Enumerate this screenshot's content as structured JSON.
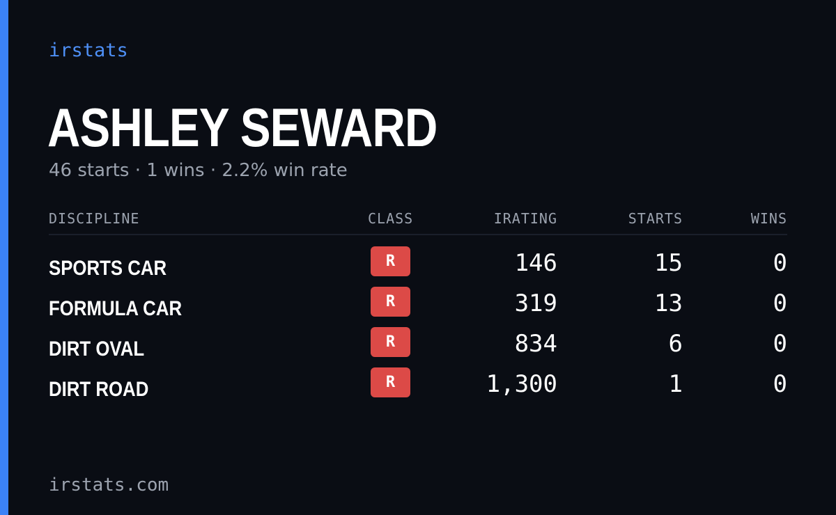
{
  "brand": {
    "name": "irstats"
  },
  "player": {
    "name": "ASHLEY SEWARD",
    "summary": "46 starts · 1 wins · 2.2% win rate"
  },
  "table": {
    "headers": {
      "discipline": "DISCIPLINE",
      "class": "CLASS",
      "irating": "IRATING",
      "starts": "STARTS",
      "wins": "WINS"
    },
    "rows": [
      {
        "discipline": "SPORTS CAR",
        "class": "R",
        "irating": "146",
        "starts": "15",
        "wins": "0"
      },
      {
        "discipline": "FORMULA CAR",
        "class": "R",
        "irating": "319",
        "starts": "13",
        "wins": "0"
      },
      {
        "discipline": "DIRT OVAL",
        "class": "R",
        "irating": "834",
        "starts": "6",
        "wins": "0"
      },
      {
        "discipline": "DIRT ROAD",
        "class": "R",
        "irating": "1,300",
        "starts": "1",
        "wins": "0"
      }
    ]
  },
  "footer": {
    "url": "irstats.com"
  },
  "colors": {
    "background": "#0a0d14",
    "accent": "#3b82f6",
    "class_r": "#dc4a47",
    "muted_text": "#9ca3af"
  }
}
